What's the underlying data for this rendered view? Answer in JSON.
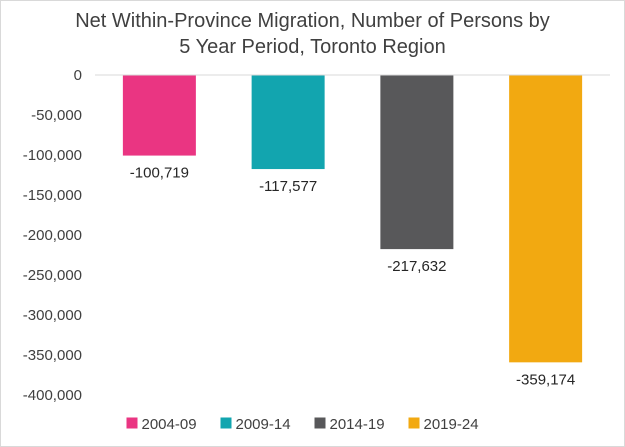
{
  "chart_data": {
    "type": "bar",
    "title_line1": "Net Within-Province Migration, Number of Persons by",
    "title_line2": "5 Year Period, Toronto Region",
    "xlabel": "",
    "ylabel": "",
    "ylim": [
      -400000,
      0
    ],
    "yticks": [
      0,
      -50000,
      -100000,
      -150000,
      -200000,
      -250000,
      -300000,
      -350000,
      -400000
    ],
    "ytick_labels": [
      "0",
      "-50,000",
      "-100,000",
      "-150,000",
      "-200,000",
      "-250,000",
      "-300,000",
      "-350,000",
      "-400,000"
    ],
    "grid": false,
    "legend_position": "bottom",
    "series": [
      {
        "name": "2004-09",
        "value": -100719,
        "label": "-100,719",
        "color": "#EA3582"
      },
      {
        "name": "2009-14",
        "value": -117577,
        "label": "-117,577",
        "color": "#12A5AF"
      },
      {
        "name": "2014-19",
        "value": -217632,
        "label": "-217,632",
        "color": "#58585A"
      },
      {
        "name": "2019-24",
        "value": -359174,
        "label": "-359,174",
        "color": "#F2A911"
      }
    ]
  }
}
